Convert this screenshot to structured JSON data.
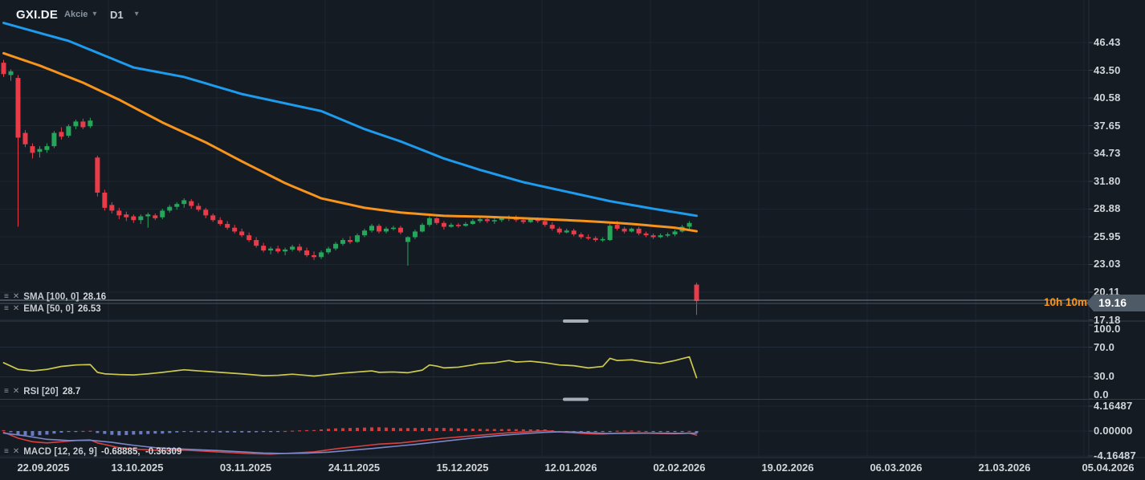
{
  "header": {
    "symbol": "GXI.DE",
    "instrument_type": "Akcie",
    "timeframe": "D1"
  },
  "icons": {
    "menu": "≡",
    "close": "✕",
    "caret_down": "▾"
  },
  "indicators": {
    "sma": {
      "label": "SMA [100, 0]",
      "value": "28.16"
    },
    "ema": {
      "label": "EMA [50, 0]",
      "value": "26.53"
    },
    "rsi": {
      "label": "RSI [20]",
      "value": "28.7"
    },
    "macd": {
      "label": "MACD [12, 26, 9]",
      "value": "-0.68885,  -0.36309"
    }
  },
  "price_scale": {
    "ticks": [
      "46.43",
      "43.50",
      "40.58",
      "37.65",
      "34.73",
      "31.80",
      "28.88",
      "25.95",
      "23.03",
      "20.11",
      "17.18"
    ],
    "last_price_label": "19.16",
    "countdown": "10h 10m"
  },
  "rsi_scale": {
    "ticks": [
      "100.0",
      "70.0",
      "30.0",
      "0.0"
    ],
    "values": [
      100,
      70,
      30,
      0
    ]
  },
  "macd_scale": {
    "ticks": [
      "4.16487",
      "0.00000",
      "-4.16487"
    ],
    "values": [
      4.16487,
      0,
      -4.16487
    ]
  },
  "time_scale": {
    "labels": [
      "22.09.2025",
      "13.10.2025",
      "03.11.2025",
      "24.11.2025",
      "15.12.2025",
      "12.01.2026",
      "02.02.2026",
      "19.02.2026",
      "06.03.2026",
      "21.03.2026",
      "05.04.2026"
    ]
  },
  "colors": {
    "background": "#141B23",
    "grid": "#1C2630",
    "separator": "#343E4A",
    "handle": "#A7AFB8",
    "bull": "#26A65B",
    "bear": "#EA3B49",
    "sma": "#1E9BEC",
    "ema": "#F7941D",
    "rsi": "#CDC94E",
    "macd_line": "#D94040",
    "signal_line": "#7B87C9",
    "hist_pos": "#D94040",
    "hist_neg": "#6F7FD1",
    "axis_text": "#D2D6DB",
    "price_tag_bg": "#4E5A66",
    "countdown": "#F7941D",
    "price_line_light": "#79848E",
    "price_line_dark": "#4A545E"
  },
  "chart_data": {
    "type": "candlestick",
    "title": "GXI.DE daily candlestick chart with SMA(100), EMA(50), RSI(20) and MACD(12,26,9)",
    "bars": 97,
    "first_bar_date": "22.09.2025",
    "last_price": 19.16,
    "price_axis_range_visible": [
      16.5,
      48.5
    ],
    "ohlc": [
      [
        44.3,
        44.6,
        42.8,
        43.1
      ],
      [
        43.0,
        43.6,
        42.4,
        43.4
      ],
      [
        42.7,
        43.0,
        27.0,
        36.4
      ],
      [
        36.9,
        37.2,
        35.4,
        35.7
      ],
      [
        35.5,
        35.8,
        34.2,
        34.8
      ],
      [
        34.9,
        35.5,
        34.3,
        35.2
      ],
      [
        35.1,
        35.8,
        34.8,
        35.5
      ],
      [
        35.5,
        37.1,
        35.3,
        36.9
      ],
      [
        37.0,
        37.5,
        36.2,
        36.5
      ],
      [
        36.6,
        37.8,
        36.4,
        37.6
      ],
      [
        37.6,
        38.3,
        37.3,
        38.1
      ],
      [
        38.1,
        38.4,
        37.3,
        37.5
      ],
      [
        37.6,
        38.5,
        37.4,
        38.2
      ],
      [
        34.3,
        34.5,
        30.2,
        30.6
      ],
      [
        30.6,
        30.9,
        28.7,
        29.0
      ],
      [
        29.3,
        29.6,
        28.4,
        28.7
      ],
      [
        28.7,
        29.0,
        27.8,
        28.2
      ],
      [
        28.3,
        28.6,
        27.6,
        28.0
      ],
      [
        28.1,
        28.3,
        27.4,
        27.7
      ],
      [
        27.7,
        28.3,
        27.3,
        28.1
      ],
      [
        28.1,
        28.5,
        26.9,
        28.3
      ],
      [
        28.2,
        28.4,
        27.7,
        27.9
      ],
      [
        28.0,
        28.9,
        27.8,
        28.7
      ],
      [
        28.7,
        29.3,
        28.5,
        29.1
      ],
      [
        29.1,
        29.6,
        28.8,
        29.4
      ],
      [
        29.4,
        30.0,
        29.0,
        29.8
      ],
      [
        29.7,
        29.9,
        28.9,
        29.2
      ],
      [
        29.2,
        29.5,
        28.6,
        28.8
      ],
      [
        28.8,
        29.0,
        27.9,
        28.2
      ],
      [
        28.2,
        28.4,
        27.5,
        27.7
      ],
      [
        27.7,
        28.0,
        27.1,
        27.3
      ],
      [
        27.3,
        27.6,
        26.7,
        26.9
      ],
      [
        26.9,
        27.2,
        26.3,
        26.5
      ],
      [
        26.5,
        26.8,
        25.9,
        26.1
      ],
      [
        26.1,
        26.4,
        25.4,
        25.6
      ],
      [
        25.6,
        25.9,
        24.8,
        25.0
      ],
      [
        25.0,
        25.3,
        24.3,
        24.5
      ],
      [
        24.5,
        24.9,
        24.1,
        24.7
      ],
      [
        24.7,
        25.0,
        24.2,
        24.4
      ],
      [
        24.4,
        24.8,
        24.0,
        24.6
      ],
      [
        24.6,
        25.1,
        24.4,
        24.9
      ],
      [
        24.9,
        25.2,
        24.3,
        24.5
      ],
      [
        24.5,
        24.8,
        23.8,
        24.0
      ],
      [
        24.0,
        24.4,
        23.5,
        23.8
      ],
      [
        23.8,
        24.5,
        23.6,
        24.3
      ],
      [
        24.3,
        24.9,
        24.1,
        24.7
      ],
      [
        24.7,
        25.4,
        24.5,
        25.2
      ],
      [
        25.2,
        25.8,
        25.0,
        25.6
      ],
      [
        25.6,
        26.0,
        25.2,
        25.4
      ],
      [
        25.4,
        26.3,
        25.3,
        26.1
      ],
      [
        26.1,
        26.8,
        25.9,
        26.6
      ],
      [
        26.6,
        27.3,
        26.4,
        27.1
      ],
      [
        27.1,
        27.3,
        26.3,
        26.5
      ],
      [
        26.5,
        27.0,
        26.3,
        26.8
      ],
      [
        26.8,
        27.1,
        26.6,
        26.9
      ],
      [
        26.9,
        27.1,
        26.2,
        26.4
      ],
      [
        25.4,
        26.0,
        22.9,
        25.9
      ],
      [
        25.9,
        26.7,
        25.7,
        26.5
      ],
      [
        26.5,
        27.4,
        26.4,
        27.2
      ],
      [
        27.2,
        28.1,
        27.0,
        27.9
      ],
      [
        27.9,
        28.0,
        27.2,
        27.4
      ],
      [
        27.4,
        27.6,
        26.7,
        27.0
      ],
      [
        27.0,
        27.4,
        26.9,
        27.2
      ],
      [
        27.2,
        27.4,
        26.9,
        27.1
      ],
      [
        27.1,
        27.5,
        27.0,
        27.3
      ],
      [
        27.3,
        27.8,
        27.2,
        27.6
      ],
      [
        27.6,
        28.0,
        27.4,
        27.8
      ],
      [
        27.8,
        28.0,
        27.4,
        27.6
      ],
      [
        27.6,
        27.9,
        27.3,
        27.7
      ],
      [
        27.7,
        28.1,
        27.5,
        27.9
      ],
      [
        27.9,
        28.2,
        27.6,
        28.0
      ],
      [
        28.0,
        28.2,
        27.5,
        27.7
      ],
      [
        27.7,
        27.9,
        27.3,
        27.5
      ],
      [
        27.5,
        27.9,
        27.4,
        27.8
      ],
      [
        27.8,
        28.0,
        27.4,
        27.6
      ],
      [
        27.6,
        27.8,
        27.0,
        27.2
      ],
      [
        27.2,
        27.5,
        26.6,
        26.8
      ],
      [
        26.8,
        27.0,
        26.2,
        26.4
      ],
      [
        26.4,
        26.8,
        26.3,
        26.6
      ],
      [
        26.6,
        26.8,
        26.0,
        26.2
      ],
      [
        26.2,
        26.4,
        25.7,
        25.9
      ],
      [
        25.9,
        26.2,
        25.6,
        25.8
      ],
      [
        25.8,
        26.0,
        25.4,
        25.6
      ],
      [
        25.6,
        25.9,
        25.4,
        25.7
      ],
      [
        25.6,
        27.3,
        25.5,
        27.1
      ],
      [
        27.2,
        27.6,
        26.6,
        26.8
      ],
      [
        26.8,
        27.0,
        26.3,
        26.5
      ],
      [
        26.5,
        26.9,
        26.4,
        26.8
      ],
      [
        26.8,
        27.0,
        26.1,
        26.3
      ],
      [
        26.3,
        26.5,
        25.9,
        26.1
      ],
      [
        26.1,
        26.3,
        25.7,
        25.9
      ],
      [
        25.9,
        26.3,
        25.8,
        26.1
      ],
      [
        26.1,
        26.4,
        25.9,
        26.2
      ],
      [
        26.2,
        26.7,
        26.0,
        26.5
      ],
      [
        26.5,
        27.2,
        26.4,
        27.0
      ],
      [
        27.0,
        27.6,
        26.8,
        27.4
      ],
      [
        20.9,
        21.1,
        17.7,
        19.16
      ]
    ],
    "series": [
      {
        "name": "SMA 100",
        "interpolation": "linear",
        "current": 28.16,
        "points": [
          [
            0,
            48.5
          ],
          [
            9,
            46.6
          ],
          [
            18,
            43.8
          ],
          [
            25,
            42.8
          ],
          [
            33,
            41.0
          ],
          [
            44,
            39.2
          ],
          [
            50,
            37.3
          ],
          [
            55,
            36.0
          ],
          [
            61,
            34.2
          ],
          [
            66,
            33.0
          ],
          [
            72,
            31.7
          ],
          [
            78,
            30.7
          ],
          [
            84,
            29.7
          ],
          [
            90,
            28.9
          ],
          [
            96,
            28.16
          ]
        ]
      },
      {
        "name": "EMA 50",
        "interpolation": "linear",
        "current": 26.53,
        "points": [
          [
            0,
            45.3
          ],
          [
            5,
            44.0
          ],
          [
            11,
            42.2
          ],
          [
            16,
            40.4
          ],
          [
            22,
            38.0
          ],
          [
            28,
            35.9
          ],
          [
            33,
            33.9
          ],
          [
            39,
            31.6
          ],
          [
            44,
            30.0
          ],
          [
            50,
            29.0
          ],
          [
            55,
            28.5
          ],
          [
            61,
            28.15
          ],
          [
            67,
            28.05
          ],
          [
            72,
            27.9
          ],
          [
            78,
            27.7
          ],
          [
            83,
            27.5
          ],
          [
            87,
            27.3
          ],
          [
            90,
            27.1
          ],
          [
            93,
            26.9
          ],
          [
            96,
            26.53
          ]
        ]
      },
      {
        "name": "RSI 20",
        "interpolation": "linear",
        "current": 28.7,
        "range": [
          0,
          100
        ],
        "guides": [
          70,
          30
        ],
        "points": [
          [
            0,
            49
          ],
          [
            2,
            40
          ],
          [
            4,
            38
          ],
          [
            6,
            40
          ],
          [
            8,
            44
          ],
          [
            10,
            46
          ],
          [
            12,
            46.5
          ],
          [
            13,
            36
          ],
          [
            14,
            34
          ],
          [
            16,
            33
          ],
          [
            18,
            32.5
          ],
          [
            20,
            34
          ],
          [
            22,
            36
          ],
          [
            25,
            39.5
          ],
          [
            27,
            38
          ],
          [
            30,
            36
          ],
          [
            33,
            34
          ],
          [
            36,
            31.5
          ],
          [
            38,
            32
          ],
          [
            40,
            33.5
          ],
          [
            43,
            31
          ],
          [
            45,
            33
          ],
          [
            47,
            35
          ],
          [
            49,
            36.5
          ],
          [
            51,
            38
          ],
          [
            52,
            36
          ],
          [
            54,
            36.5
          ],
          [
            56,
            35.5
          ],
          [
            58,
            39
          ],
          [
            59,
            46
          ],
          [
            60,
            44.5
          ],
          [
            61,
            42
          ],
          [
            63,
            43
          ],
          [
            65,
            46
          ],
          [
            66,
            48
          ],
          [
            68,
            49
          ],
          [
            70,
            52
          ],
          [
            71,
            50
          ],
          [
            73,
            51
          ],
          [
            75,
            49
          ],
          [
            77,
            46
          ],
          [
            79,
            45
          ],
          [
            81,
            42
          ],
          [
            83,
            44
          ],
          [
            84,
            55
          ],
          [
            85,
            52
          ],
          [
            87,
            53
          ],
          [
            89,
            50
          ],
          [
            91,
            48
          ],
          [
            93,
            52
          ],
          [
            95,
            57
          ],
          [
            96,
            28.7
          ]
        ]
      },
      {
        "name": "MACD",
        "interpolation": "linear",
        "current": -0.68885,
        "points": [
          [
            0,
            -0.2
          ],
          [
            2,
            -1.2
          ],
          [
            4,
            -1.8
          ],
          [
            6,
            -2.0
          ],
          [
            8,
            -1.8
          ],
          [
            10,
            -1.6
          ],
          [
            12,
            -1.5
          ],
          [
            13,
            -2.0
          ],
          [
            16,
            -2.8
          ],
          [
            19,
            -3.1
          ],
          [
            22,
            -3.3
          ],
          [
            25,
            -3.2
          ],
          [
            28,
            -3.4
          ],
          [
            31,
            -3.6
          ],
          [
            34,
            -3.8
          ],
          [
            37,
            -3.9
          ],
          [
            40,
            -3.7
          ],
          [
            43,
            -3.5
          ],
          [
            46,
            -3.0
          ],
          [
            49,
            -2.6
          ],
          [
            52,
            -2.2
          ],
          [
            55,
            -2.0
          ],
          [
            58,
            -1.6
          ],
          [
            61,
            -1.2
          ],
          [
            64,
            -0.9
          ],
          [
            67,
            -0.6
          ],
          [
            70,
            -0.3
          ],
          [
            73,
            -0.1
          ],
          [
            75,
            0.05
          ],
          [
            77,
            -0.15
          ],
          [
            79,
            -0.3
          ],
          [
            81,
            -0.45
          ],
          [
            83,
            -0.5
          ],
          [
            85,
            -0.35
          ],
          [
            87,
            -0.3
          ],
          [
            89,
            -0.35
          ],
          [
            91,
            -0.42
          ],
          [
            93,
            -0.45
          ],
          [
            95,
            -0.35
          ],
          [
            96,
            -0.68885
          ]
        ]
      },
      {
        "name": "MACD signal",
        "interpolation": "linear",
        "current": -0.36309,
        "points": [
          [
            0,
            -0.35
          ],
          [
            3,
            -0.8
          ],
          [
            6,
            -1.4
          ],
          [
            9,
            -1.6
          ],
          [
            12,
            -1.55
          ],
          [
            15,
            -1.9
          ],
          [
            18,
            -2.4
          ],
          [
            21,
            -2.8
          ],
          [
            24,
            -3.0
          ],
          [
            27,
            -3.15
          ],
          [
            30,
            -3.3
          ],
          [
            33,
            -3.5
          ],
          [
            36,
            -3.7
          ],
          [
            39,
            -3.78
          ],
          [
            42,
            -3.72
          ],
          [
            45,
            -3.55
          ],
          [
            48,
            -3.25
          ],
          [
            51,
            -2.95
          ],
          [
            54,
            -2.6
          ],
          [
            57,
            -2.25
          ],
          [
            60,
            -1.85
          ],
          [
            63,
            -1.45
          ],
          [
            66,
            -1.05
          ],
          [
            69,
            -0.72
          ],
          [
            72,
            -0.45
          ],
          [
            75,
            -0.22
          ],
          [
            78,
            -0.12
          ],
          [
            81,
            -0.28
          ],
          [
            84,
            -0.42
          ],
          [
            87,
            -0.38
          ],
          [
            90,
            -0.34
          ],
          [
            93,
            -0.38
          ],
          [
            96,
            -0.36309
          ]
        ]
      }
    ],
    "macd_histogram_rule": "macd_minus_signal"
  }
}
